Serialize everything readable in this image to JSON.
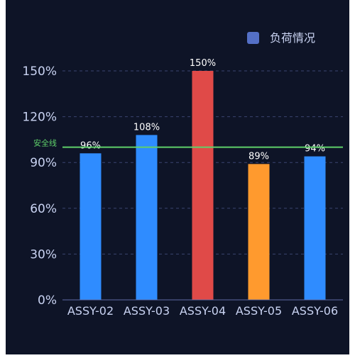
{
  "theme": {
    "page_bg": "#ffffff",
    "panel_bg": "#0e1427",
    "axis_label_color": "#c9d3f2",
    "axis_line_color": "#5d6aa6",
    "grid_color": "#3a4470",
    "value_label_color": "#ffffff"
  },
  "legend": {
    "label": "负荷情况",
    "color": "#5470c6",
    "position": "top-right"
  },
  "chart_data": {
    "type": "bar",
    "title": "",
    "xlabel": "",
    "ylabel": "",
    "categories": [
      "ASSY-02",
      "ASSY-03",
      "ASSY-04",
      "ASSY-05",
      "ASSY-06"
    ],
    "series": [
      {
        "name": "负荷情况",
        "values": [
          96,
          108,
          150,
          89,
          94
        ],
        "labels": [
          "96%",
          "108%",
          "150%",
          "89%",
          "94%"
        ],
        "colors": [
          "#2f8cff",
          "#2f8cff",
          "#e04a48",
          "#ff9a2e",
          "#2f8cff"
        ]
      }
    ],
    "ylim": [
      0,
      150
    ],
    "yticks": [
      0,
      30,
      60,
      90,
      120,
      150
    ],
    "ytick_labels": [
      "0%",
      "30%",
      "60%",
      "90%",
      "120%",
      "150%"
    ],
    "grid": true,
    "reference_line": {
      "value": 100,
      "label": "安全线",
      "color": "#5fd06a"
    }
  }
}
